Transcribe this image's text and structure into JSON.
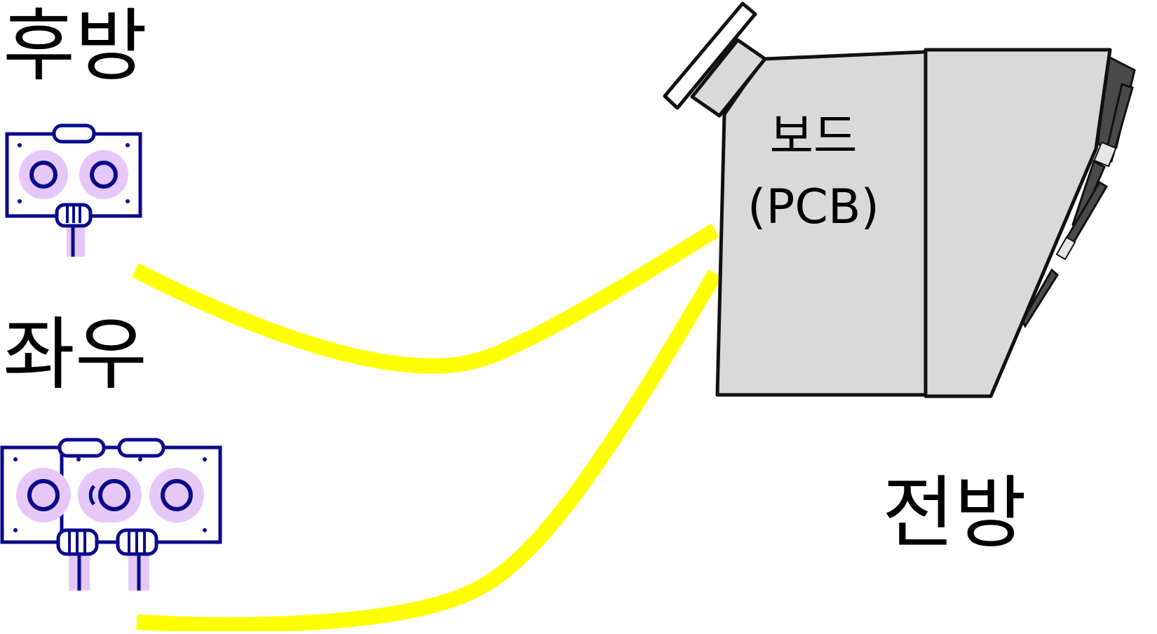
{
  "labels": {
    "rear": "후방",
    "left_right": "좌우",
    "front": "전방"
  },
  "board": {
    "name": "보드",
    "subtitle": "(PCB)"
  },
  "colors": {
    "cable": "#ffff00",
    "sensor_outline": "#0a0a8c",
    "sensor_fill": "#e6c8f8",
    "board_fill": "#d9d9d9",
    "dark_part": "#4a4a4a",
    "outline": "#111111"
  },
  "icons": {
    "single_sensor": "ultrasonic-sensor-icon",
    "dual_sensor": "dual-ultrasonic-sensor-icon",
    "board": "pcb-board-icon"
  }
}
